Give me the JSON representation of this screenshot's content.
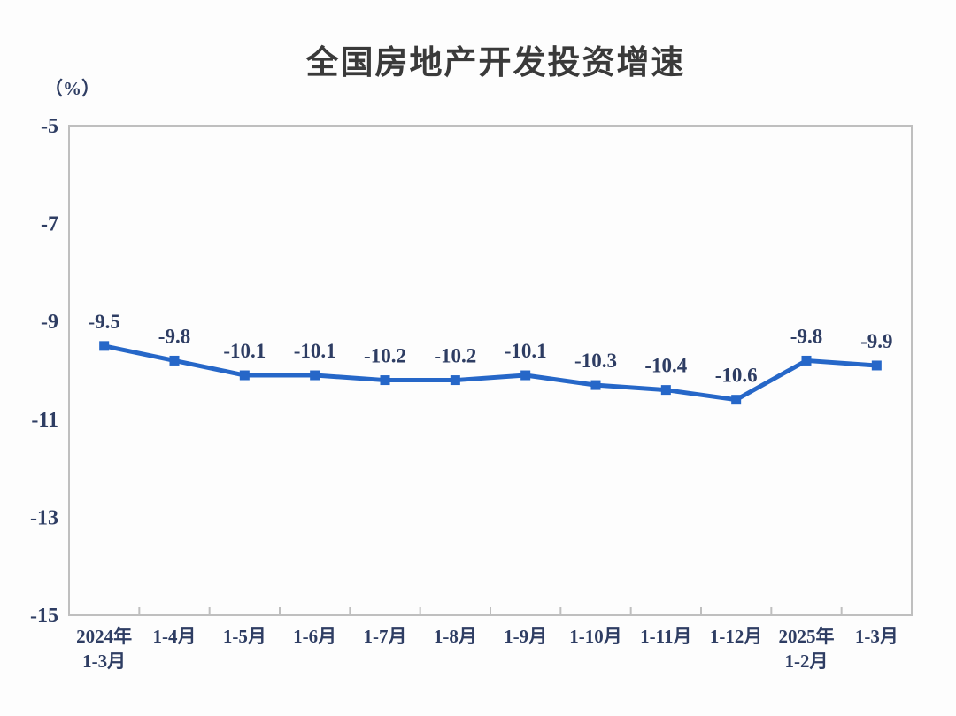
{
  "page": {
    "background_color": "#fdfdfd"
  },
  "chart_data": {
    "type": "line",
    "title": "全国房地产开发投资增速",
    "unit_label": "（%）",
    "categories": [
      "2024年\n1-3月",
      "1-4月",
      "1-5月",
      "1-6月",
      "1-7月",
      "1-8月",
      "1-9月",
      "1-10月",
      "1-11月",
      "1-12月",
      "2025年\n1-2月",
      "1-3月"
    ],
    "values": [
      -9.5,
      -9.8,
      -10.1,
      -10.1,
      -10.2,
      -10.2,
      -10.1,
      -10.3,
      -10.4,
      -10.6,
      -9.8,
      -9.9
    ],
    "point_labels": [
      "-9.5",
      "-9.8",
      "-10.1",
      "-10.1",
      "-10.2",
      "-10.2",
      "-10.1",
      "-10.3",
      "-10.4",
      "-10.6",
      "-9.8",
      "-9.9"
    ],
    "xlabel": "",
    "ylabel": "（%）",
    "ylim": [
      -15,
      -5
    ],
    "yticks": [
      -5,
      -7,
      -9,
      -11,
      -13,
      -15
    ],
    "grid": false,
    "legend_position": "none",
    "series_name": "全国房地产开发投资增速",
    "series_color": "#2667C8",
    "text_color": "#2E3D63",
    "title_color": "#3A3A3A",
    "border_color": "#BFBFBF"
  }
}
